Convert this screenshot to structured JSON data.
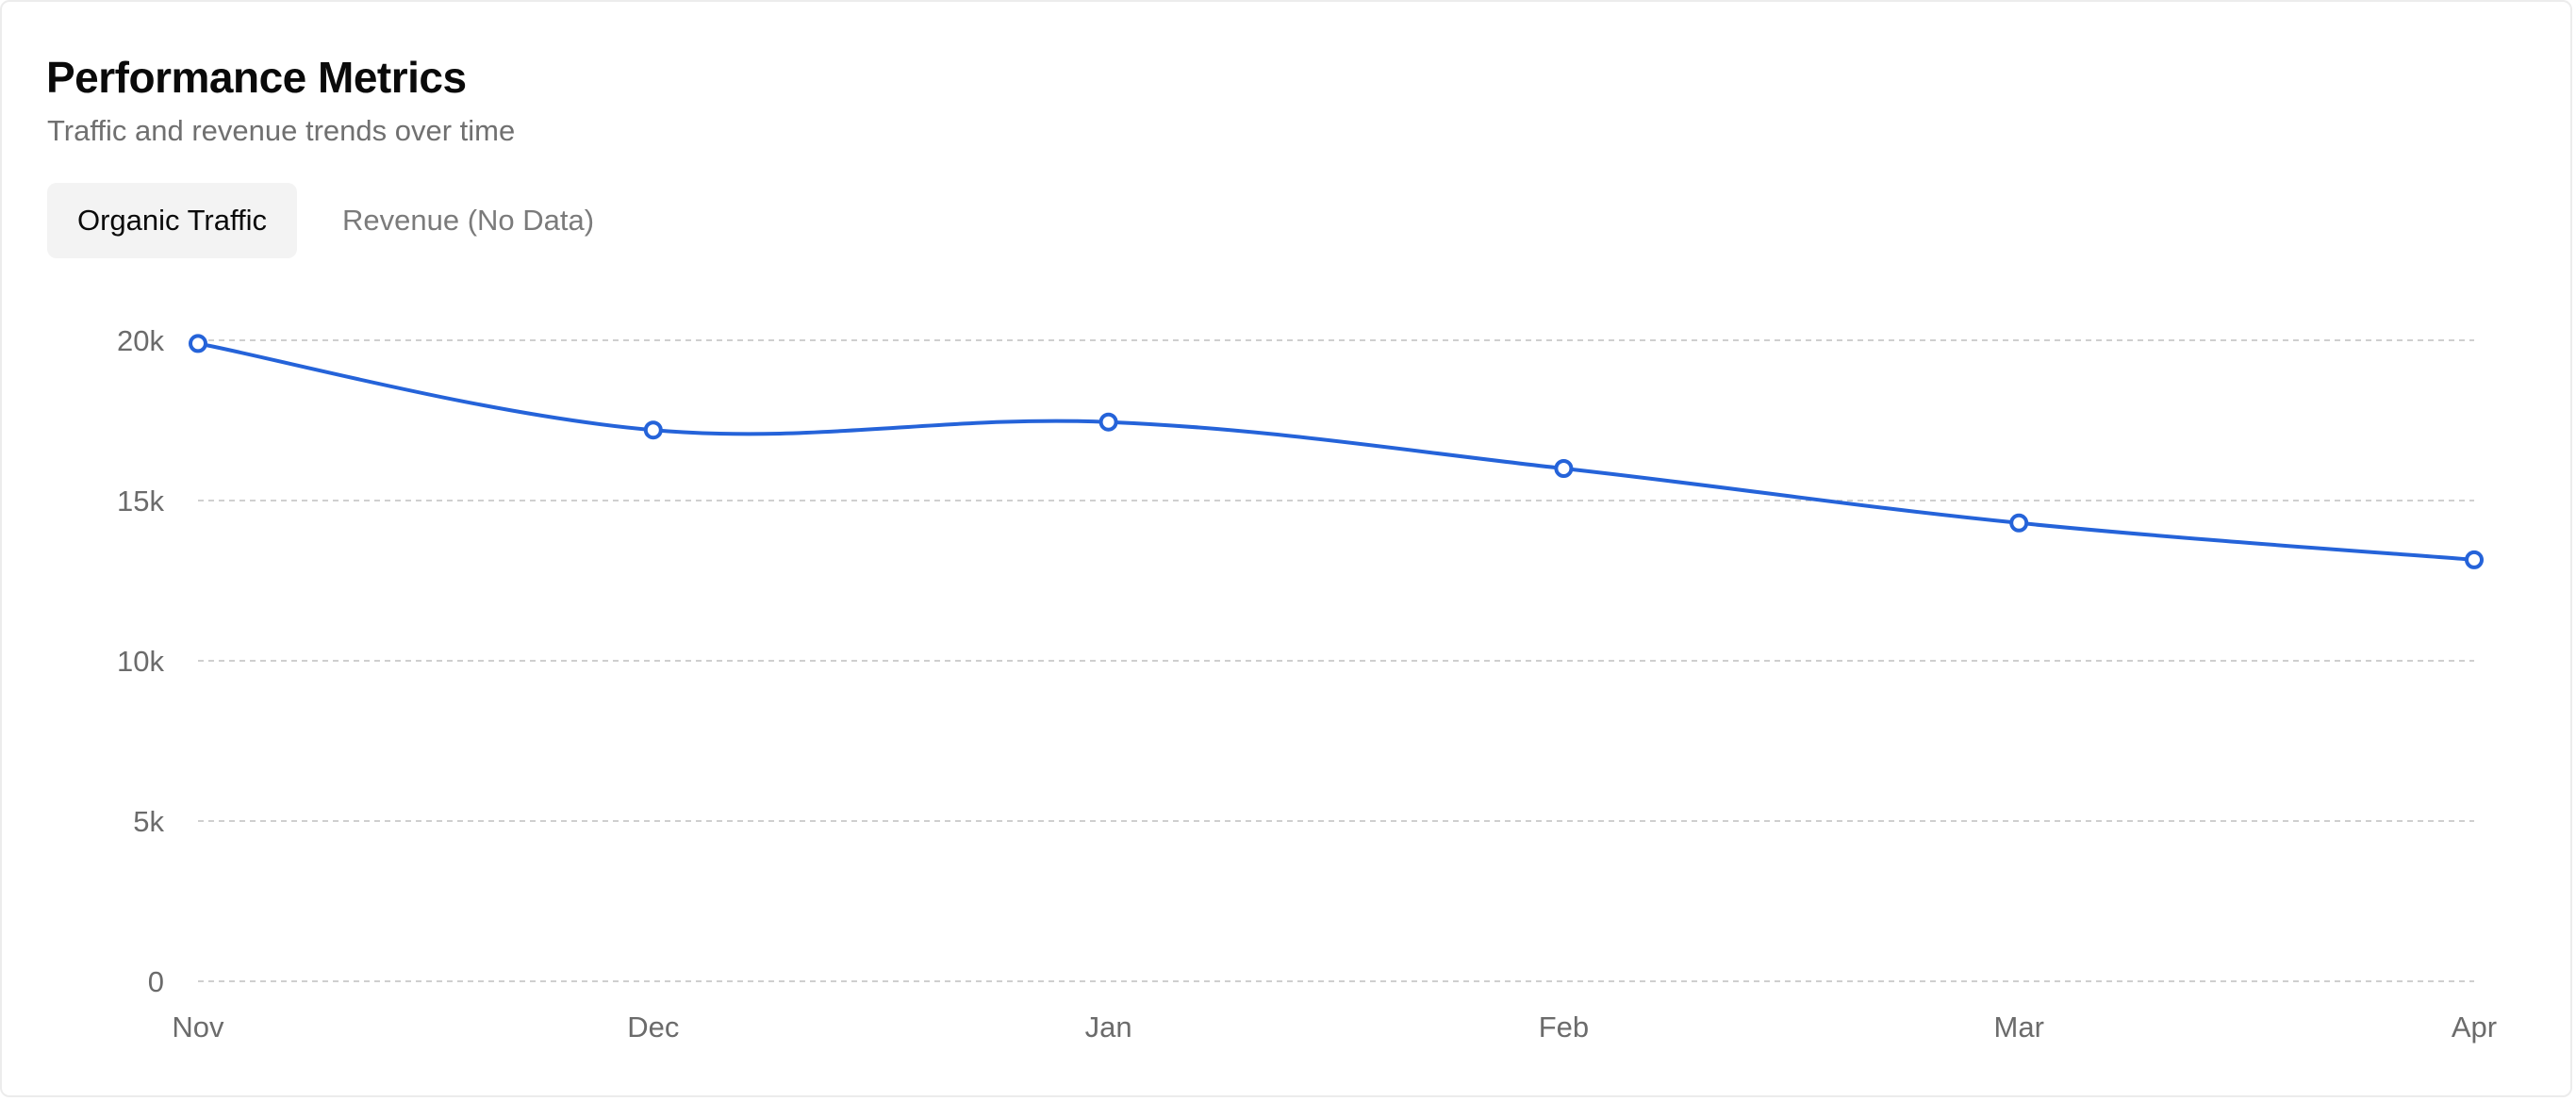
{
  "header": {
    "title": "Performance Metrics",
    "subtitle": "Traffic and revenue trends over time"
  },
  "tabs": [
    {
      "label": "Organic Traffic",
      "active": true
    },
    {
      "label": "Revenue (No Data)",
      "active": false
    }
  ],
  "colors": {
    "line": "#2563d9",
    "grid": "#cfcfcf",
    "axis_text": "#6b6b6b",
    "point_fill": "#ffffff"
  },
  "chart_data": {
    "type": "line",
    "title": "",
    "xlabel": "",
    "ylabel": "",
    "categories": [
      "Nov",
      "Dec",
      "Jan",
      "Feb",
      "Mar",
      "Apr"
    ],
    "series": [
      {
        "values": [
          19900,
          17200,
          17450,
          16000,
          14300,
          13150
        ]
      }
    ],
    "ylim": [
      0,
      20000
    ],
    "yticks": [
      0,
      5000,
      10000,
      15000,
      20000
    ],
    "ytick_labels": [
      "0",
      "5k",
      "10k",
      "15k",
      "20k"
    ],
    "grid": true,
    "grid_style": "dashed",
    "legend": "none"
  }
}
